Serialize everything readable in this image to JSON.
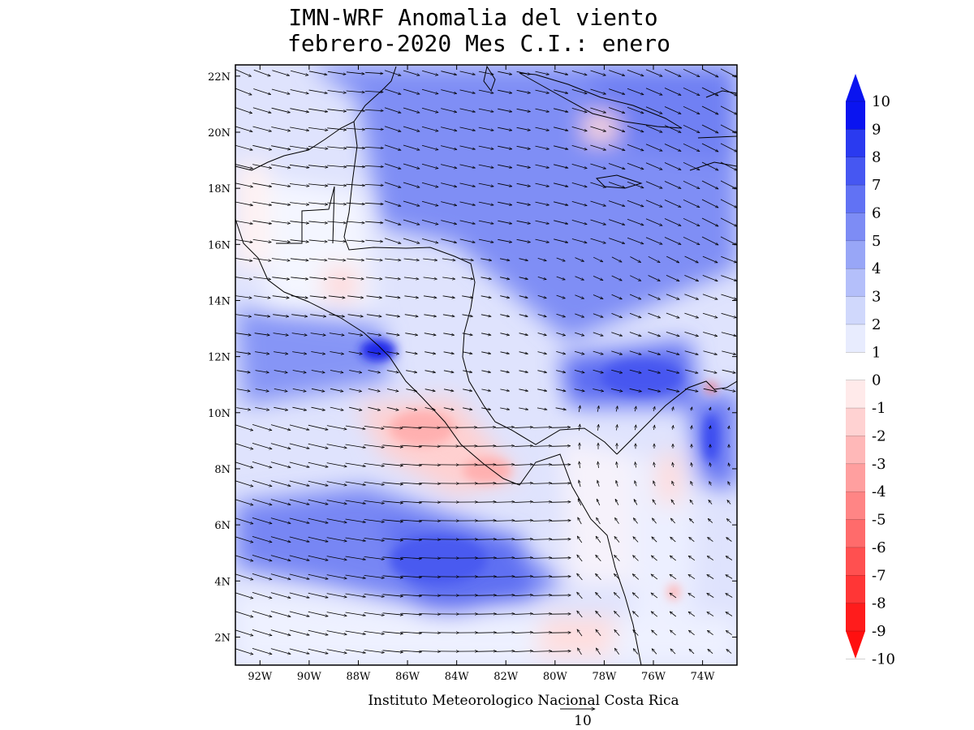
{
  "title": {
    "line1": "IMN-WRF Anomalia del viento",
    "line2": "febrero-2020 Mes C.I.: enero"
  },
  "credit": "Instituto Meteorologico Nacional Costa Rica",
  "reference_vector": {
    "label": "10",
    "magnitude": 10
  },
  "map": {
    "lat_ticks": [
      "2N",
      "4N",
      "6N",
      "8N",
      "10N",
      "12N",
      "14N",
      "16N",
      "18N",
      "20N",
      "22N"
    ],
    "lon_ticks": [
      "92W",
      "90W",
      "88W",
      "86W",
      "84W",
      "82W",
      "80W",
      "78W",
      "76W",
      "74W"
    ],
    "lat_range": [
      1,
      22.4
    ],
    "lon_range": [
      -93,
      -72.6
    ]
  },
  "colorbar": {
    "labels": [
      "10",
      "9",
      "8",
      "7",
      "6",
      "5",
      "4",
      "3",
      "2",
      "1",
      "0",
      "-1",
      "-2",
      "-3",
      "-4",
      "-5",
      "-6",
      "-7",
      "-8",
      "-9",
      "-10"
    ],
    "colors": [
      "#0a14f0",
      "#2a3af0",
      "#4657f2",
      "#6172f4",
      "#7d8cf5",
      "#98a6f7",
      "#b4bffa",
      "#d0d8fc",
      "#e8ecfe",
      "#ffffff",
      "#ffeaea",
      "#ffd2d2",
      "#ffb8b8",
      "#ff9f9f",
      "#ff8585",
      "#ff6b6b",
      "#ff5050",
      "#ff3636",
      "#ff1c1c"
    ],
    "top_color": "#0a14f0",
    "bottom_color": "#ff1010"
  }
}
